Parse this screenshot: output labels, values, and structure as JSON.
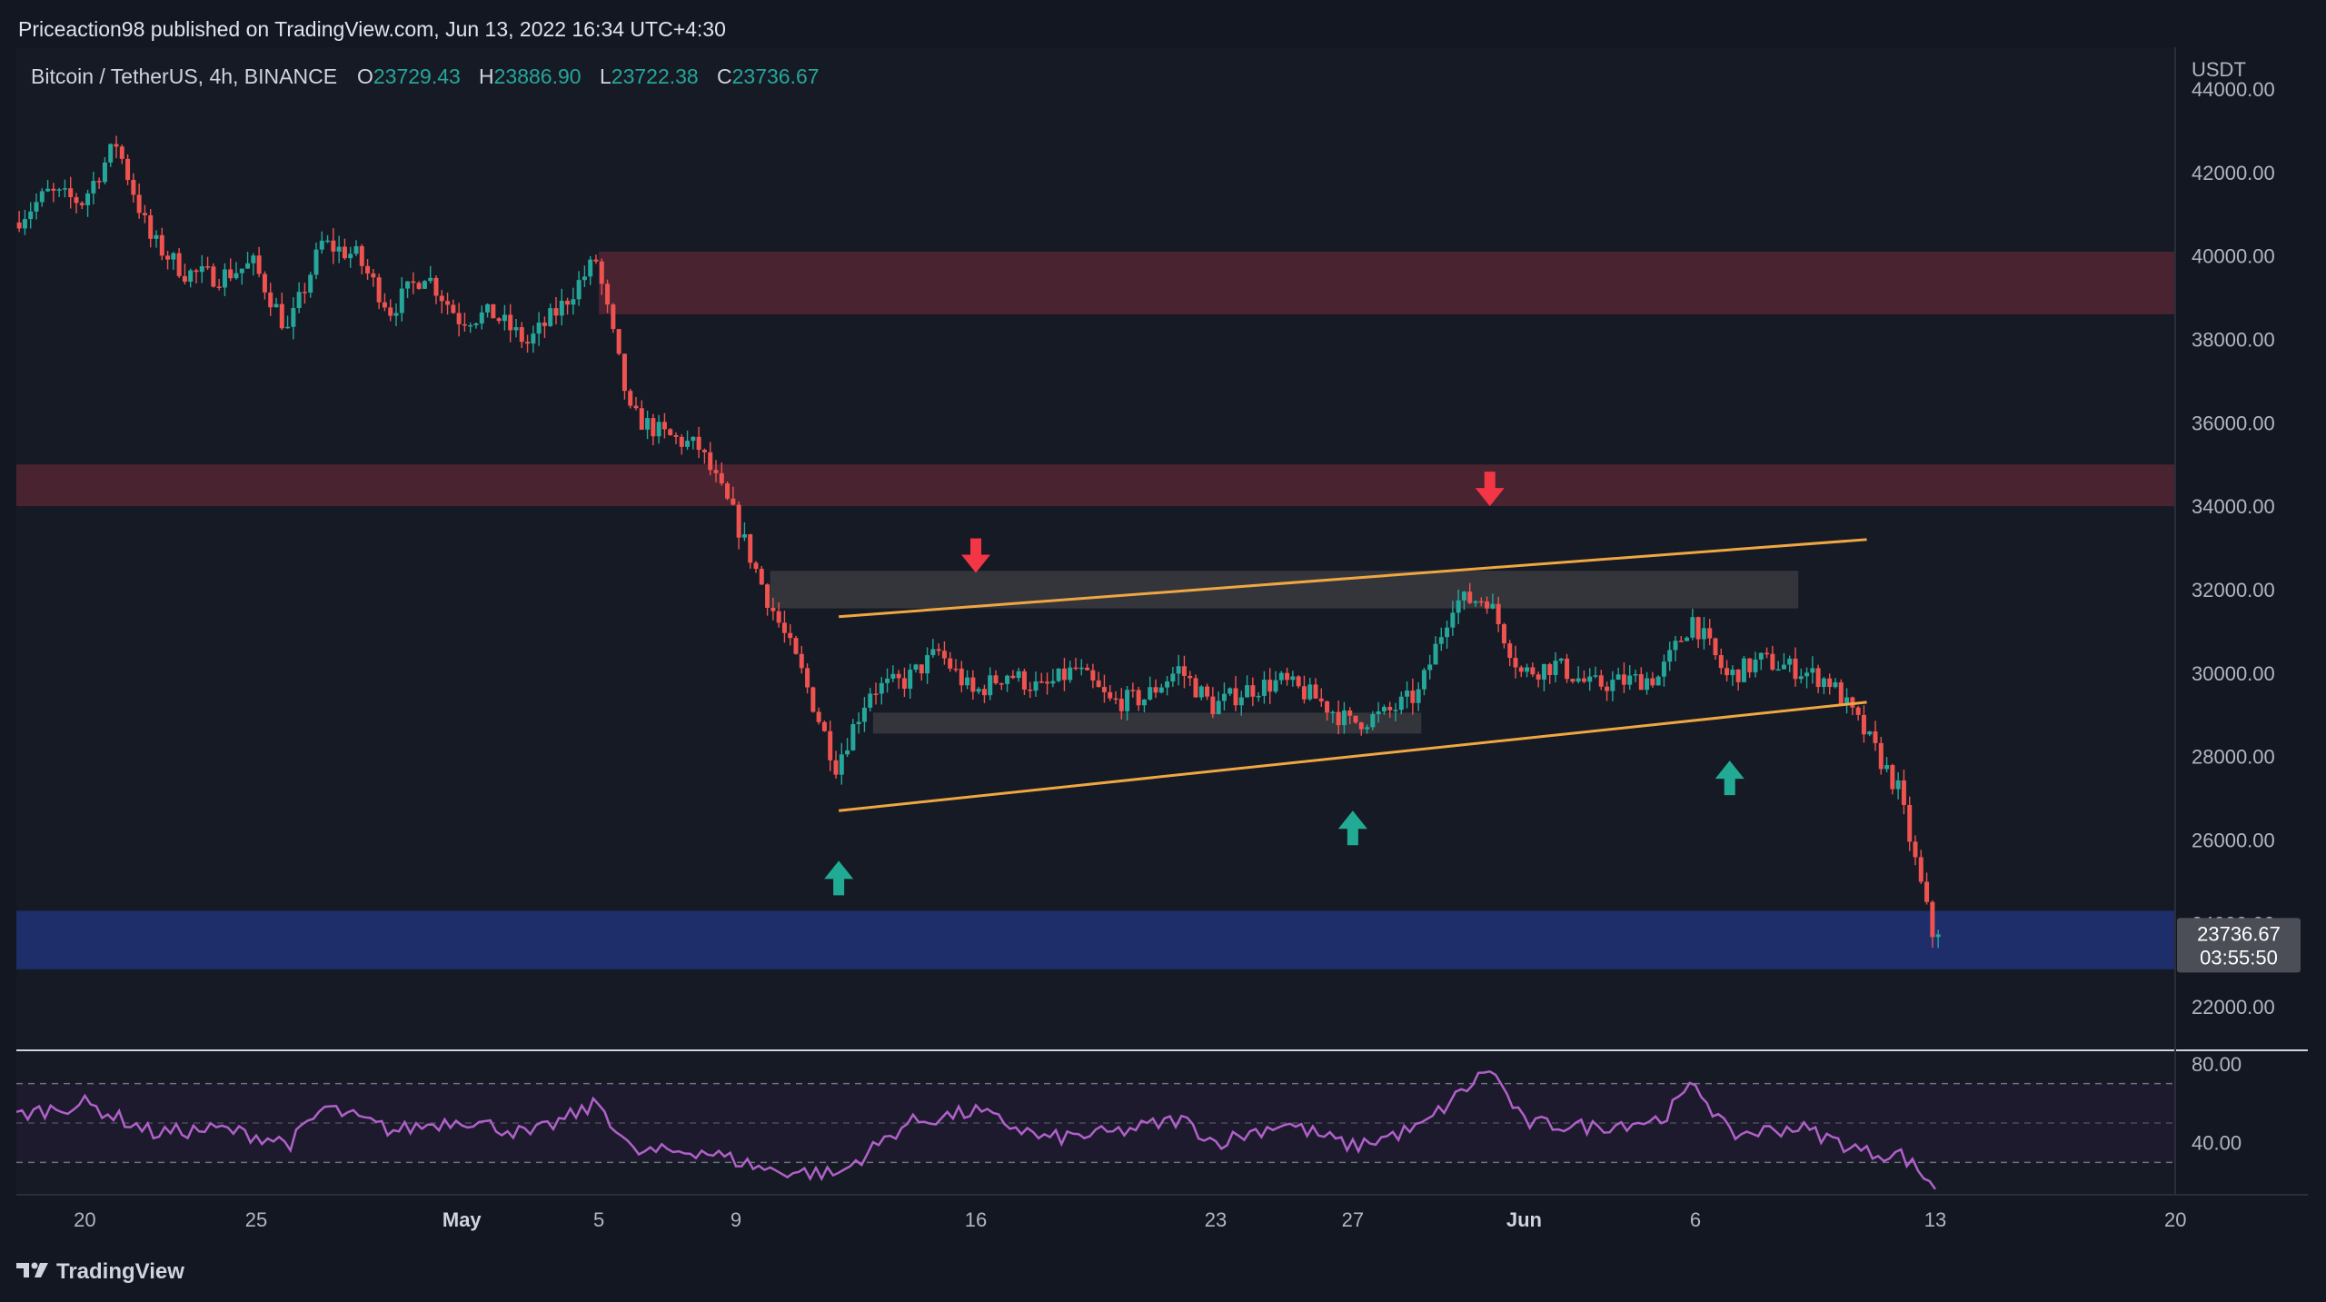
{
  "header": {
    "published_by": "Priceaction98 published on TradingView.com, Jun 13, 2022 16:34 UTC+4:30"
  },
  "legend": {
    "symbol": "Bitcoin / TetherUS, 4h, BINANCE",
    "open_label": "O",
    "open_value": "23729.43",
    "high_label": "H",
    "high_value": "23886.90",
    "low_label": "L",
    "low_value": "23722.38",
    "close_label": "C",
    "close_value": "23736.67"
  },
  "price_axis": {
    "currency": "USDT",
    "last_price": "23736.67",
    "countdown": "03:55:50"
  },
  "branding": {
    "text": "TradingView"
  },
  "colors": {
    "background": "#131722",
    "chart_bg": "#161a25",
    "up": "#26a69a",
    "down": "#ef5350",
    "resistance_zone": "#4a2330",
    "support_zone": "#1d2e6b",
    "range_box": "#3a3b3f",
    "trendline": "#f0a742",
    "rsi_line": "#b061c9",
    "rsi_band": "#1e1a2e",
    "axis_text": "#b2b5be"
  },
  "chart_data": [
    {
      "type": "candlestick",
      "symbol": "Bitcoin / TetherUS",
      "interval": "4h",
      "exchange": "BINANCE",
      "y_axis": {
        "ylim": [
          21000,
          45000
        ],
        "ticks": [
          22000,
          24000,
          26000,
          28000,
          30000,
          32000,
          34000,
          36000,
          38000,
          40000,
          42000,
          44000
        ],
        "tick_labels": [
          "22000.00",
          "24000.00",
          "26000.00",
          "28000.00",
          "30000.00",
          "32000.00",
          "34000.00",
          "36000.00",
          "38000.00",
          "40000.00",
          "42000.00",
          "44000.00"
        ]
      },
      "x_axis": {
        "start_date": "2022-04-18",
        "end_date": "2022-06-20",
        "tick_dates": [
          "2022-04-20",
          "2022-04-25",
          "2022-05-01",
          "2022-05-05",
          "2022-05-09",
          "2022-05-16",
          "2022-05-23",
          "2022-05-27",
          "2022-06-01",
          "2022-06-06",
          "2022-06-13",
          "2022-06-20"
        ],
        "tick_labels": [
          "20",
          "25",
          "May",
          "5",
          "9",
          "16",
          "23",
          "27",
          "Jun",
          "6",
          "13",
          "20"
        ]
      },
      "price_path": [
        [
          "2022-04-18",
          40800
        ],
        [
          "2022-04-19",
          41500
        ],
        [
          "2022-04-20",
          41300
        ],
        [
          "2022-04-21",
          42700
        ],
        [
          "2022-04-22",
          40400
        ],
        [
          "2022-04-23",
          39600
        ],
        [
          "2022-04-24",
          39500
        ],
        [
          "2022-04-25",
          39800
        ],
        [
          "2022-04-26",
          38200
        ],
        [
          "2022-04-27",
          40300
        ],
        [
          "2022-04-28",
          40000
        ],
        [
          "2022-04-29",
          38700
        ],
        [
          "2022-04-30",
          39600
        ],
        [
          "2022-05-01",
          38500
        ],
        [
          "2022-05-02",
          38600
        ],
        [
          "2022-05-03",
          37900
        ],
        [
          "2022-05-04",
          38800
        ],
        [
          "2022-05-05",
          39900
        ],
        [
          "2022-05-06",
          36200
        ],
        [
          "2022-05-07",
          35700
        ],
        [
          "2022-05-08",
          35400
        ],
        [
          "2022-05-09",
          33800
        ],
        [
          "2022-05-10",
          31800
        ],
        [
          "2022-05-11",
          30000
        ],
        [
          "2022-05-12",
          27800
        ],
        [
          "2022-05-13",
          29600
        ],
        [
          "2022-05-14",
          29800
        ],
        [
          "2022-05-15",
          30500
        ],
        [
          "2022-05-16",
          29500
        ],
        [
          "2022-05-17",
          30000
        ],
        [
          "2022-05-18",
          29600
        ],
        [
          "2022-05-19",
          30100
        ],
        [
          "2022-05-20",
          29300
        ],
        [
          "2022-05-21",
          29400
        ],
        [
          "2022-05-22",
          30100
        ],
        [
          "2022-05-23",
          29200
        ],
        [
          "2022-05-24",
          29600
        ],
        [
          "2022-05-25",
          29800
        ],
        [
          "2022-05-26",
          29400
        ],
        [
          "2022-05-27",
          28800
        ],
        [
          "2022-05-28",
          29000
        ],
        [
          "2022-05-29",
          29500
        ],
        [
          "2022-05-30",
          31700
        ],
        [
          "2022-05-31",
          31800
        ],
        [
          "2022-06-01",
          30000
        ],
        [
          "2022-06-02",
          30200
        ],
        [
          "2022-06-03",
          29700
        ],
        [
          "2022-06-04",
          29800
        ],
        [
          "2022-06-05",
          29900
        ],
        [
          "2022-06-06",
          31300
        ],
        [
          "2022-06-07",
          29900
        ],
        [
          "2022-06-08",
          30300
        ],
        [
          "2022-06-09",
          30100
        ],
        [
          "2022-06-10",
          29800
        ],
        [
          "2022-06-11",
          28600
        ],
        [
          "2022-06-12",
          27200
        ],
        [
          "2022-06-13",
          23736.67
        ]
      ],
      "last_ohlc": {
        "open": 23729.43,
        "high": 23886.9,
        "low": 23722.38,
        "close": 23736.67
      },
      "zones": [
        {
          "kind": "resistance",
          "y0": 38600,
          "y1": 40100,
          "start_date": "2022-05-05"
        },
        {
          "kind": "resistance",
          "y0": 34000,
          "y1": 35000,
          "start_date": "2022-04-18"
        },
        {
          "kind": "support",
          "y0": 22900,
          "y1": 24300,
          "start_date": "2022-04-18"
        },
        {
          "kind": "range-top",
          "y0": 31550,
          "y1": 32450,
          "start_date": "2022-05-10",
          "end_date": "2022-06-09"
        },
        {
          "kind": "range-bottom",
          "y0": 28550,
          "y1": 29050,
          "start_date": "2022-05-13",
          "end_date": "2022-05-29"
        }
      ],
      "trendlines": [
        {
          "from": [
            "2022-05-12",
            31350
          ],
          "to": [
            "2022-06-11",
            33200
          ]
        },
        {
          "from": [
            "2022-05-12",
            26700
          ],
          "to": [
            "2022-06-11",
            29300
          ]
        }
      ],
      "annotations": [
        {
          "kind": "arrow-down",
          "date": "2022-05-16",
          "price": 32400
        },
        {
          "kind": "arrow-down",
          "date": "2022-05-31",
          "price": 34000
        },
        {
          "kind": "arrow-up",
          "date": "2022-05-12",
          "price": 25500
        },
        {
          "kind": "arrow-up",
          "date": "2022-05-27",
          "price": 26700
        },
        {
          "kind": "arrow-up",
          "date": "2022-06-07",
          "price": 27900
        }
      ]
    },
    {
      "type": "line",
      "indicator": "RSI",
      "ylim": [
        14,
        86
      ],
      "ticks": [
        40,
        80
      ],
      "tick_labels": [
        "40.00",
        "80.00"
      ],
      "band": [
        30,
        70
      ],
      "midline": 50,
      "values_path": [
        [
          "2022-04-18",
          54
        ],
        [
          "2022-04-20",
          60
        ],
        [
          "2022-04-22",
          45
        ],
        [
          "2022-04-24",
          47
        ],
        [
          "2022-04-26",
          40
        ],
        [
          "2022-04-27",
          58
        ],
        [
          "2022-04-29",
          46
        ],
        [
          "2022-05-01",
          52
        ],
        [
          "2022-05-03",
          44
        ],
        [
          "2022-05-05",
          60
        ],
        [
          "2022-05-06",
          35
        ],
        [
          "2022-05-08",
          36
        ],
        [
          "2022-05-10",
          26
        ],
        [
          "2022-05-12",
          24
        ],
        [
          "2022-05-14",
          50
        ],
        [
          "2022-05-16",
          56
        ],
        [
          "2022-05-18",
          42
        ],
        [
          "2022-05-20",
          45
        ],
        [
          "2022-05-22",
          52
        ],
        [
          "2022-05-23",
          40
        ],
        [
          "2022-05-25",
          50
        ],
        [
          "2022-05-27",
          38
        ],
        [
          "2022-05-29",
          48
        ],
        [
          "2022-05-31",
          78
        ],
        [
          "2022-06-01",
          50
        ],
        [
          "2022-06-03",
          48
        ],
        [
          "2022-06-05",
          52
        ],
        [
          "2022-06-06",
          70
        ],
        [
          "2022-06-07",
          44
        ],
        [
          "2022-06-09",
          48
        ],
        [
          "2022-06-11",
          35
        ],
        [
          "2022-06-12",
          34
        ],
        [
          "2022-06-13",
          18
        ]
      ]
    }
  ]
}
